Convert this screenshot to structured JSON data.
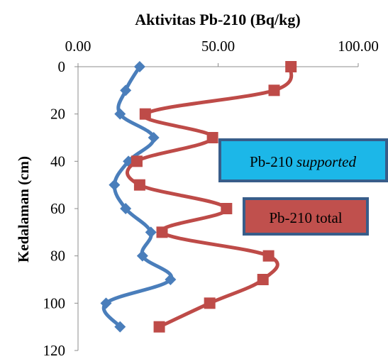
{
  "chart_data": {
    "type": "line",
    "title": "Aktivitas Pb-210 (Bq/kg)",
    "ylabel": "Kedalaman (cm)",
    "xlim": [
      0,
      100
    ],
    "ylim": [
      0,
      120
    ],
    "x_ticks": [
      "0.00",
      "50.00",
      "100.00"
    ],
    "y_ticks": [
      "0",
      "20",
      "40",
      "60",
      "80",
      "100",
      "120"
    ],
    "x_axis_position": "top",
    "y_axis_inverted": true,
    "grid": false,
    "series": [
      {
        "name": "Pb-210 supported",
        "color": "#4a7ebb",
        "marker": "diamond",
        "points": [
          {
            "x": 22,
            "y": 0
          },
          {
            "x": 17,
            "y": 10
          },
          {
            "x": 15,
            "y": 20
          },
          {
            "x": 27,
            "y": 30
          },
          {
            "x": 18,
            "y": 40
          },
          {
            "x": 13,
            "y": 50
          },
          {
            "x": 17,
            "y": 60
          },
          {
            "x": 26,
            "y": 70
          },
          {
            "x": 23,
            "y": 80
          },
          {
            "x": 33,
            "y": 90
          },
          {
            "x": 10,
            "y": 100
          },
          {
            "x": 15,
            "y": 110
          }
        ]
      },
      {
        "name": "Pb-210 total",
        "color": "#be4b48",
        "marker": "square",
        "points": [
          {
            "x": 76,
            "y": 0
          },
          {
            "x": 70,
            "y": 10
          },
          {
            "x": 24,
            "y": 20
          },
          {
            "x": 48,
            "y": 30
          },
          {
            "x": 21,
            "y": 40
          },
          {
            "x": 22,
            "y": 50
          },
          {
            "x": 53,
            "y": 60
          },
          {
            "x": 30,
            "y": 70
          },
          {
            "x": 68,
            "y": 80
          },
          {
            "x": 66,
            "y": 90
          },
          {
            "x": 47,
            "y": 100
          },
          {
            "x": 29,
            "y": 110
          }
        ]
      }
    ],
    "callouts": [
      {
        "series_index": 0,
        "text": "Pb-210 ",
        "text_italic": "supported",
        "fill": "#1cb7e8"
      },
      {
        "series_index": 1,
        "text": "Pb-210 total",
        "text_italic": "",
        "fill": "#c0504d"
      }
    ]
  }
}
